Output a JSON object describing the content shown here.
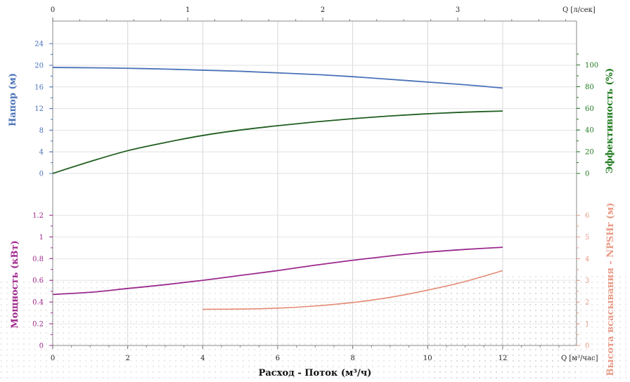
{
  "chart_data": {
    "type": "line",
    "x_flow_m3h": {
      "label": "Расход - Поток (м³/ч)",
      "unit": "Q [м³/час]",
      "ticks": [
        0,
        2,
        4,
        6,
        8,
        10,
        12
      ],
      "range": [
        0,
        14
      ]
    },
    "x_flow_ls": {
      "unit": "Q [л/сек]",
      "ticks": [
        0,
        1,
        2,
        3
      ]
    },
    "head_panel": {
      "left_axis": {
        "label": "Напор (м)",
        "ticks": [
          0,
          4,
          8,
          12,
          16,
          20,
          24
        ],
        "range": [
          0,
          24
        ],
        "color": "#4a72b8"
      },
      "right_axis": {
        "label": "Эффективность (%)",
        "ticks": [
          0,
          20,
          40,
          60,
          80,
          100
        ],
        "range": [
          0,
          120
        ],
        "color": "#1f7a1f"
      },
      "series": [
        {
          "axis": "left",
          "color": "#4a72b8",
          "x": [
            0,
            1,
            2,
            3,
            4,
            5,
            6,
            7,
            8,
            9,
            10,
            11,
            12
          ],
          "y": [
            19.6,
            19.55,
            19.45,
            19.3,
            19.1,
            18.9,
            18.6,
            18.3,
            17.9,
            17.4,
            16.9,
            16.4,
            15.8
          ]
        },
        {
          "axis": "right",
          "color": "#1f5e1f",
          "x": [
            0,
            1,
            2,
            3,
            4,
            5,
            6,
            7,
            8,
            9,
            10,
            11,
            12
          ],
          "y": [
            0,
            11,
            21,
            28.5,
            35,
            40,
            44,
            47.5,
            50.5,
            53,
            55,
            56.5,
            57.5
          ]
        }
      ]
    },
    "power_panel": {
      "left_axis": {
        "label": "Мощность (кВт)",
        "ticks": [
          0,
          0.2,
          0.4,
          0.6,
          0.8,
          1,
          1.2
        ],
        "tick_labels": [
          "0",
          "0.2",
          "0.4",
          "0.6",
          "0.8",
          "1",
          "1.2"
        ],
        "range": [
          0,
          1.2
        ],
        "color": "#a0288c"
      },
      "right_axis": {
        "label": "Высота всасывания - NPSHr (м)",
        "ticks": [
          0,
          1,
          2,
          3,
          4,
          5,
          6
        ],
        "range": [
          0,
          6
        ],
        "color": "#e89a86"
      },
      "series": [
        {
          "axis": "left",
          "color": "#9b2a8e",
          "x": [
            0,
            1,
            2,
            3,
            4,
            5,
            6,
            7,
            8,
            9,
            10,
            11,
            12
          ],
          "y": [
            0.47,
            0.49,
            0.525,
            0.56,
            0.6,
            0.645,
            0.69,
            0.74,
            0.785,
            0.825,
            0.86,
            0.885,
            0.905
          ]
        },
        {
          "axis": "right",
          "color": "#e48a74",
          "x": [
            4,
            5,
            6,
            7,
            8,
            9,
            10,
            11,
            12
          ],
          "y": [
            1.67,
            1.68,
            1.72,
            1.82,
            1.98,
            2.22,
            2.55,
            2.95,
            3.45
          ]
        }
      ]
    }
  }
}
